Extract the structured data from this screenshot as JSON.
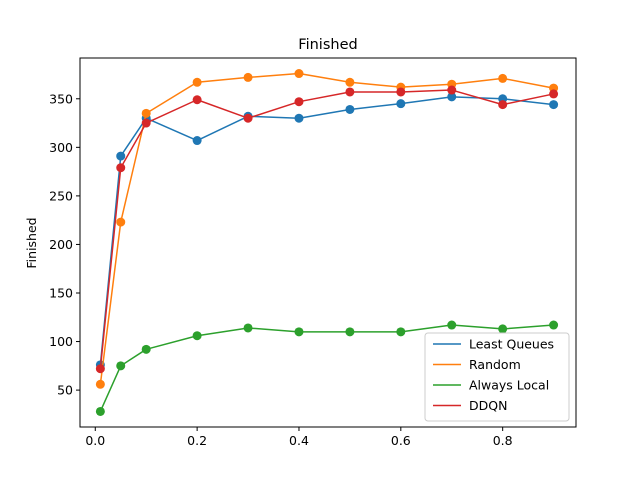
{
  "chart_data": {
    "type": "line",
    "title": "Finished",
    "xlabel": "",
    "ylabel": "Finished",
    "xlim": [
      -0.03,
      0.944
    ],
    "ylim": [
      12,
      392
    ],
    "xticks": [
      0.0,
      0.2,
      0.4,
      0.6,
      0.8
    ],
    "xtick_labels": [
      "0.0",
      "0.2",
      "0.4",
      "0.6",
      "0.8"
    ],
    "yticks": [
      50,
      100,
      150,
      200,
      250,
      300,
      350
    ],
    "ytick_labels": [
      "50",
      "100",
      "150",
      "200",
      "250",
      "300",
      "350"
    ],
    "grid": false,
    "legend": "lower-right",
    "x": [
      0.01,
      0.05,
      0.1,
      0.2,
      0.3,
      0.4,
      0.5,
      0.6,
      0.7,
      0.8,
      0.9
    ],
    "series": [
      {
        "name": "Least Queues",
        "color": "#1f77b4",
        "values": [
          76,
          291,
          330,
          307,
          332,
          330,
          339,
          345,
          352,
          350,
          344
        ]
      },
      {
        "name": "Random",
        "color": "#ff7f0e",
        "values": [
          56,
          223,
          335,
          367,
          372,
          376,
          367,
          362,
          365,
          371,
          361
        ]
      },
      {
        "name": "Always Local",
        "color": "#2ca02c",
        "values": [
          28,
          75,
          92,
          106,
          114,
          110,
          110,
          110,
          117,
          113,
          117
        ]
      },
      {
        "name": "DDQN",
        "color": "#d62728",
        "values": [
          72,
          279,
          325,
          349,
          330,
          347,
          357,
          357,
          359,
          344,
          355
        ]
      }
    ]
  }
}
